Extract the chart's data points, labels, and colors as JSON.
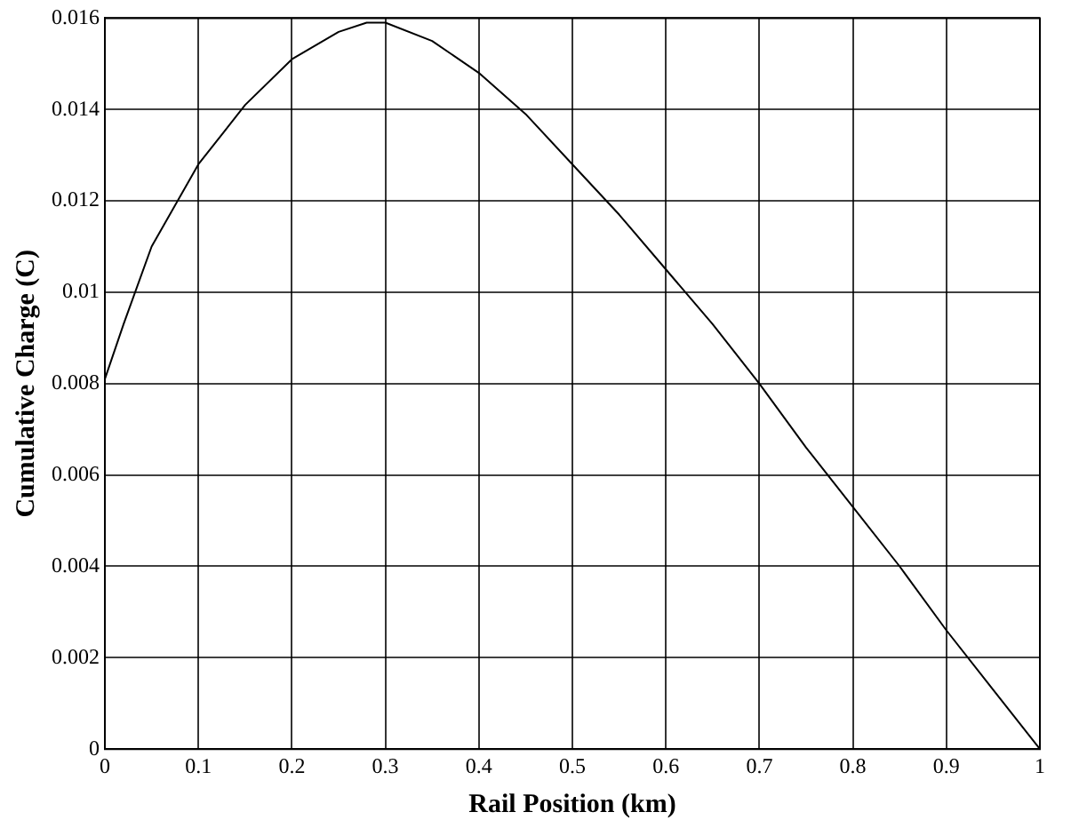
{
  "chart_data": {
    "type": "line",
    "xlabel": "Rail Position (km)",
    "ylabel": "Cumulative Charge (C)",
    "x": [
      0,
      0.02,
      0.05,
      0.1,
      0.15,
      0.2,
      0.25,
      0.28,
      0.3,
      0.35,
      0.4,
      0.45,
      0.5,
      0.55,
      0.6,
      0.65,
      0.7,
      0.75,
      0.8,
      0.85,
      0.9,
      0.95,
      1
    ],
    "series": [
      {
        "color": "#000000",
        "values": [
          0.0081,
          0.0093,
          0.011,
          0.0128,
          0.0141,
          0.0151,
          0.0157,
          0.0159,
          0.0159,
          0.0155,
          0.0148,
          0.0139,
          0.0128,
          0.0117,
          0.0105,
          0.0093,
          0.008,
          0.0066,
          0.0053,
          0.004,
          0.0026,
          0.0013,
          0
        ]
      }
    ],
    "xlim": [
      0,
      1
    ],
    "xticks": [
      0,
      0.1,
      0.2,
      0.3,
      0.4,
      0.5,
      0.6,
      0.7,
      0.8,
      0.9,
      1
    ],
    "ylim": [
      0,
      0.016
    ],
    "yticks": [
      0,
      0.002,
      0.004,
      0.006,
      0.008,
      0.01,
      0.012,
      0.014,
      0.016
    ],
    "grid": true,
    "legend": false,
    "marker": "none",
    "line_style": "solid"
  }
}
